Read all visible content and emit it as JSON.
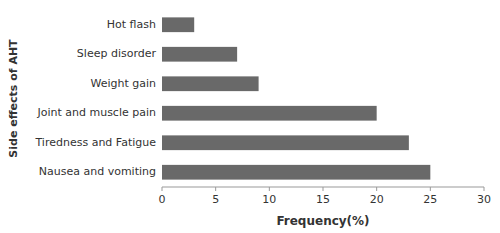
{
  "chart_data": {
    "type": "bar",
    "orientation": "horizontal",
    "categories": [
      "Nausea and vomiting",
      "Tiredness and Fatigue",
      "Joint and muscle pain",
      "Weight gain",
      "Sleep disorder",
      "Hot flash"
    ],
    "values": [
      25,
      23,
      20,
      9,
      7,
      3
    ],
    "color": "#696969",
    "xlabel": "Frequency(%)",
    "ylabel": "Side effects of AHT",
    "xlim": [
      0,
      30
    ],
    "xticks": [
      0,
      5,
      10,
      15,
      20,
      25,
      30
    ],
    "grid": false
  }
}
